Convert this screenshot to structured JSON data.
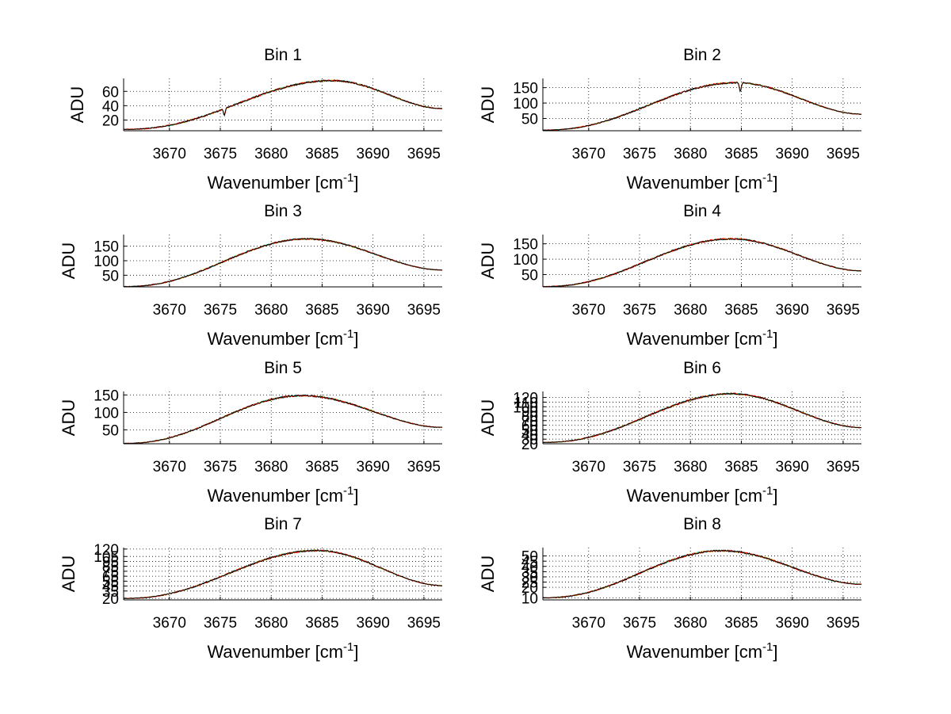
{
  "chart_data": [
    {
      "type": "line",
      "title": "Bin 1",
      "xlabel": "Wavenumber [cm",
      "xlabel_sup": "-1",
      "xlabel_end": "]",
      "ylabel": "ADU",
      "xlim": [
        3665.5,
        3696.8
      ],
      "ylim": [
        5,
        78
      ],
      "xticks": [
        3670,
        3675,
        3680,
        3685,
        3690,
        3695
      ],
      "yticks": [
        20,
        40,
        60
      ],
      "grid": true,
      "curve": {
        "start": 7,
        "peak": 75,
        "peak_x": 3686.0,
        "end": 36,
        "noise": 1.2
      },
      "dips": [
        {
          "x": 3675.4,
          "depth": 9
        }
      ],
      "series": [
        {
          "name": "series-1",
          "color": "#00bfbf"
        },
        {
          "name": "series-2",
          "color": "#bfbf00"
        },
        {
          "name": "series-3",
          "color": "#ff0000"
        },
        {
          "name": "series-4",
          "color": "#000000"
        }
      ]
    },
    {
      "type": "line",
      "title": "Bin 2",
      "xlabel": "Wavenumber [cm",
      "xlabel_sup": "-1",
      "xlabel_end": "]",
      "ylabel": "ADU",
      "xlim": [
        3665.5,
        3696.8
      ],
      "ylim": [
        10,
        180
      ],
      "xticks": [
        3670,
        3675,
        3680,
        3685,
        3690,
        3695
      ],
      "yticks": [
        50,
        100,
        150
      ],
      "grid": true,
      "curve": {
        "start": 12,
        "peak": 166,
        "peak_x": 3684.5,
        "end": 64,
        "noise": 2.5
      },
      "dips": [
        {
          "x": 3684.9,
          "depth": 28
        }
      ],
      "series": [
        {
          "name": "series-1",
          "color": "#00bfbf"
        },
        {
          "name": "series-2",
          "color": "#bfbf00"
        },
        {
          "name": "series-3",
          "color": "#ff0000"
        },
        {
          "name": "series-4",
          "color": "#000000"
        }
      ]
    },
    {
      "type": "line",
      "title": "Bin 3",
      "xlabel": "Wavenumber [cm",
      "xlabel_sup": "-1",
      "xlabel_end": "]",
      "ylabel": "ADU",
      "xlim": [
        3665.5,
        3696.8
      ],
      "ylim": [
        10,
        190
      ],
      "xticks": [
        3670,
        3675,
        3680,
        3685,
        3690,
        3695
      ],
      "yticks": [
        50,
        100,
        150
      ],
      "grid": true,
      "curve": {
        "start": 11,
        "peak": 175,
        "peak_x": 3683.5,
        "end": 68,
        "noise": 2.5
      },
      "dips": [],
      "series": [
        {
          "name": "series-1",
          "color": "#00bfbf"
        },
        {
          "name": "series-2",
          "color": "#bfbf00"
        },
        {
          "name": "series-3",
          "color": "#ff0000"
        },
        {
          "name": "series-4",
          "color": "#000000"
        }
      ]
    },
    {
      "type": "line",
      "title": "Bin 4",
      "xlabel": "Wavenumber [cm",
      "xlabel_sup": "-1",
      "xlabel_end": "]",
      "ylabel": "ADU",
      "xlim": [
        3665.5,
        3696.8
      ],
      "ylim": [
        10,
        180
      ],
      "xticks": [
        3670,
        3675,
        3680,
        3685,
        3690,
        3695
      ],
      "yticks": [
        50,
        100,
        150
      ],
      "grid": true,
      "curve": {
        "start": 11,
        "peak": 166,
        "peak_x": 3684.0,
        "end": 62,
        "noise": 2.5
      },
      "dips": [],
      "series": [
        {
          "name": "series-1",
          "color": "#00bfbf"
        },
        {
          "name": "series-2",
          "color": "#bfbf00"
        },
        {
          "name": "series-3",
          "color": "#ff0000"
        },
        {
          "name": "series-4",
          "color": "#000000"
        }
      ]
    },
    {
      "type": "line",
      "title": "Bin 5",
      "xlabel": "Wavenumber [cm",
      "xlabel_sup": "-1",
      "xlabel_end": "]",
      "ylabel": "ADU",
      "xlim": [
        3665.5,
        3696.8
      ],
      "ylim": [
        10,
        160
      ],
      "xticks": [
        3670,
        3675,
        3680,
        3685,
        3690,
        3695
      ],
      "yticks": [
        50,
        100,
        150
      ],
      "grid": true,
      "curve": {
        "start": 11,
        "peak": 148,
        "peak_x": 3683.0,
        "end": 57,
        "noise": 2.2
      },
      "dips": [],
      "series": [
        {
          "name": "series-1",
          "color": "#00bfbf"
        },
        {
          "name": "series-2",
          "color": "#bfbf00"
        },
        {
          "name": "series-3",
          "color": "#ff0000"
        },
        {
          "name": "series-4",
          "color": "#000000"
        }
      ]
    },
    {
      "type": "line",
      "title": "Bin 6",
      "xlabel": "Wavenumber [cm",
      "xlabel_sup": "-1",
      "xlabel_end": "]",
      "ylabel": "ADU",
      "xlim": [
        3665.5,
        3696.8
      ],
      "ylim": [
        20,
        133
      ],
      "xticks": [
        3670,
        3675,
        3680,
        3685,
        3690,
        3695
      ],
      "yticks": [
        20,
        30,
        40,
        50,
        60,
        70,
        80,
        90,
        100,
        110,
        120
      ],
      "ytick_labels": [
        "20",
        "30",
        "40",
        "50",
        "60",
        "70",
        "80",
        "90",
        "100",
        "110",
        "120"
      ],
      "grid": true,
      "curve": {
        "start": 23,
        "peak": 128,
        "peak_x": 3684.0,
        "end": 55,
        "noise": 1.8
      },
      "dips": [],
      "series": [
        {
          "name": "series-1",
          "color": "#00bfbf"
        },
        {
          "name": "series-2",
          "color": "#bfbf00"
        },
        {
          "name": "series-3",
          "color": "#ff0000"
        },
        {
          "name": "series-4",
          "color": "#000000"
        }
      ]
    },
    {
      "type": "line",
      "title": "Bin 7",
      "xlabel": "Wavenumber [cm",
      "xlabel_sup": "-1",
      "xlabel_end": "]",
      "ylabel": "ADU",
      "xlim": [
        3665.5,
        3696.8
      ],
      "ylim": [
        17,
        123
      ],
      "xticks": [
        3670,
        3675,
        3680,
        3685,
        3690,
        3695
      ],
      "yticks": [
        20,
        35,
        45,
        55,
        65,
        75,
        85,
        95,
        105,
        120
      ],
      "ytick_labels": [
        "20",
        "35",
        "45",
        "55",
        "65",
        "75",
        "85",
        "95",
        "105",
        "120"
      ],
      "grid": true,
      "curve": {
        "start": 20,
        "peak": 117,
        "peak_x": 3684.5,
        "end": 46,
        "noise": 1.6
      },
      "dips": [],
      "series": [
        {
          "name": "series-1",
          "color": "#00bfbf"
        },
        {
          "name": "series-2",
          "color": "#bfbf00"
        },
        {
          "name": "series-3",
          "color": "#ff0000"
        },
        {
          "name": "series-4",
          "color": "#000000"
        }
      ]
    },
    {
      "type": "line",
      "title": "Bin 8",
      "xlabel": "Wavenumber [cm",
      "xlabel_sup": "-1",
      "xlabel_end": "]",
      "ylabel": "ADU",
      "xlim": [
        3665.5,
        3696.8
      ],
      "ylim": [
        8,
        58
      ],
      "xticks": [
        3670,
        3675,
        3680,
        3685,
        3690,
        3695
      ],
      "yticks": [
        10,
        20,
        25,
        30,
        35,
        40,
        45,
        50
      ],
      "ytick_labels": [
        "10",
        "20",
        "25",
        "30",
        "35",
        "40",
        "45",
        "50"
      ],
      "grid": true,
      "curve": {
        "start": 10,
        "peak": 55,
        "peak_x": 3683.0,
        "end": 23,
        "noise": 0.8
      },
      "dips": [],
      "series": [
        {
          "name": "series-1",
          "color": "#00bfbf"
        },
        {
          "name": "series-2",
          "color": "#bfbf00"
        },
        {
          "name": "series-3",
          "color": "#ff0000"
        },
        {
          "name": "series-4",
          "color": "#000000"
        }
      ]
    }
  ]
}
